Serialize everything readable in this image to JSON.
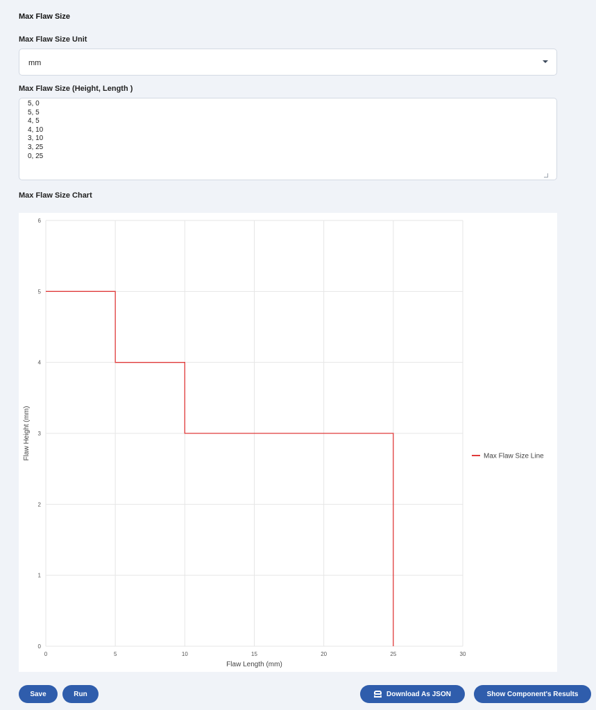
{
  "section": {
    "title": "Max Flaw Size"
  },
  "unit_field": {
    "label": "Max Flaw Size Unit",
    "value": "mm"
  },
  "size_field": {
    "label": "Max Flaw Size (Height, Length )",
    "lines": [
      "5, 0",
      "5, 5",
      "4, 5",
      "4, 10",
      "3, 10",
      "3, 25",
      "0, 25"
    ]
  },
  "chart_section": {
    "title": "Max Flaw Size Chart"
  },
  "chart_data": {
    "type": "line",
    "title": "",
    "xlabel": "Flaw Length (mm)",
    "ylabel": "Flaw Height (mm)",
    "xlim": [
      0,
      30
    ],
    "ylim": [
      0,
      6
    ],
    "xticks": [
      0,
      5,
      10,
      15,
      20,
      25,
      30
    ],
    "yticks": [
      0,
      1,
      2,
      3,
      4,
      5,
      6
    ],
    "grid": true,
    "legend_position": "right",
    "series": [
      {
        "name": "Max Flaw Size Line",
        "color": "#e03a3a",
        "points": [
          [
            0,
            5
          ],
          [
            5,
            5
          ],
          [
            5,
            4
          ],
          [
            10,
            4
          ],
          [
            10,
            3
          ],
          [
            25,
            3
          ],
          [
            25,
            0
          ]
        ]
      }
    ]
  },
  "buttons": {
    "save": "Save",
    "run": "Run",
    "download": "Download As JSON",
    "show_results": "Show Component's Results"
  }
}
